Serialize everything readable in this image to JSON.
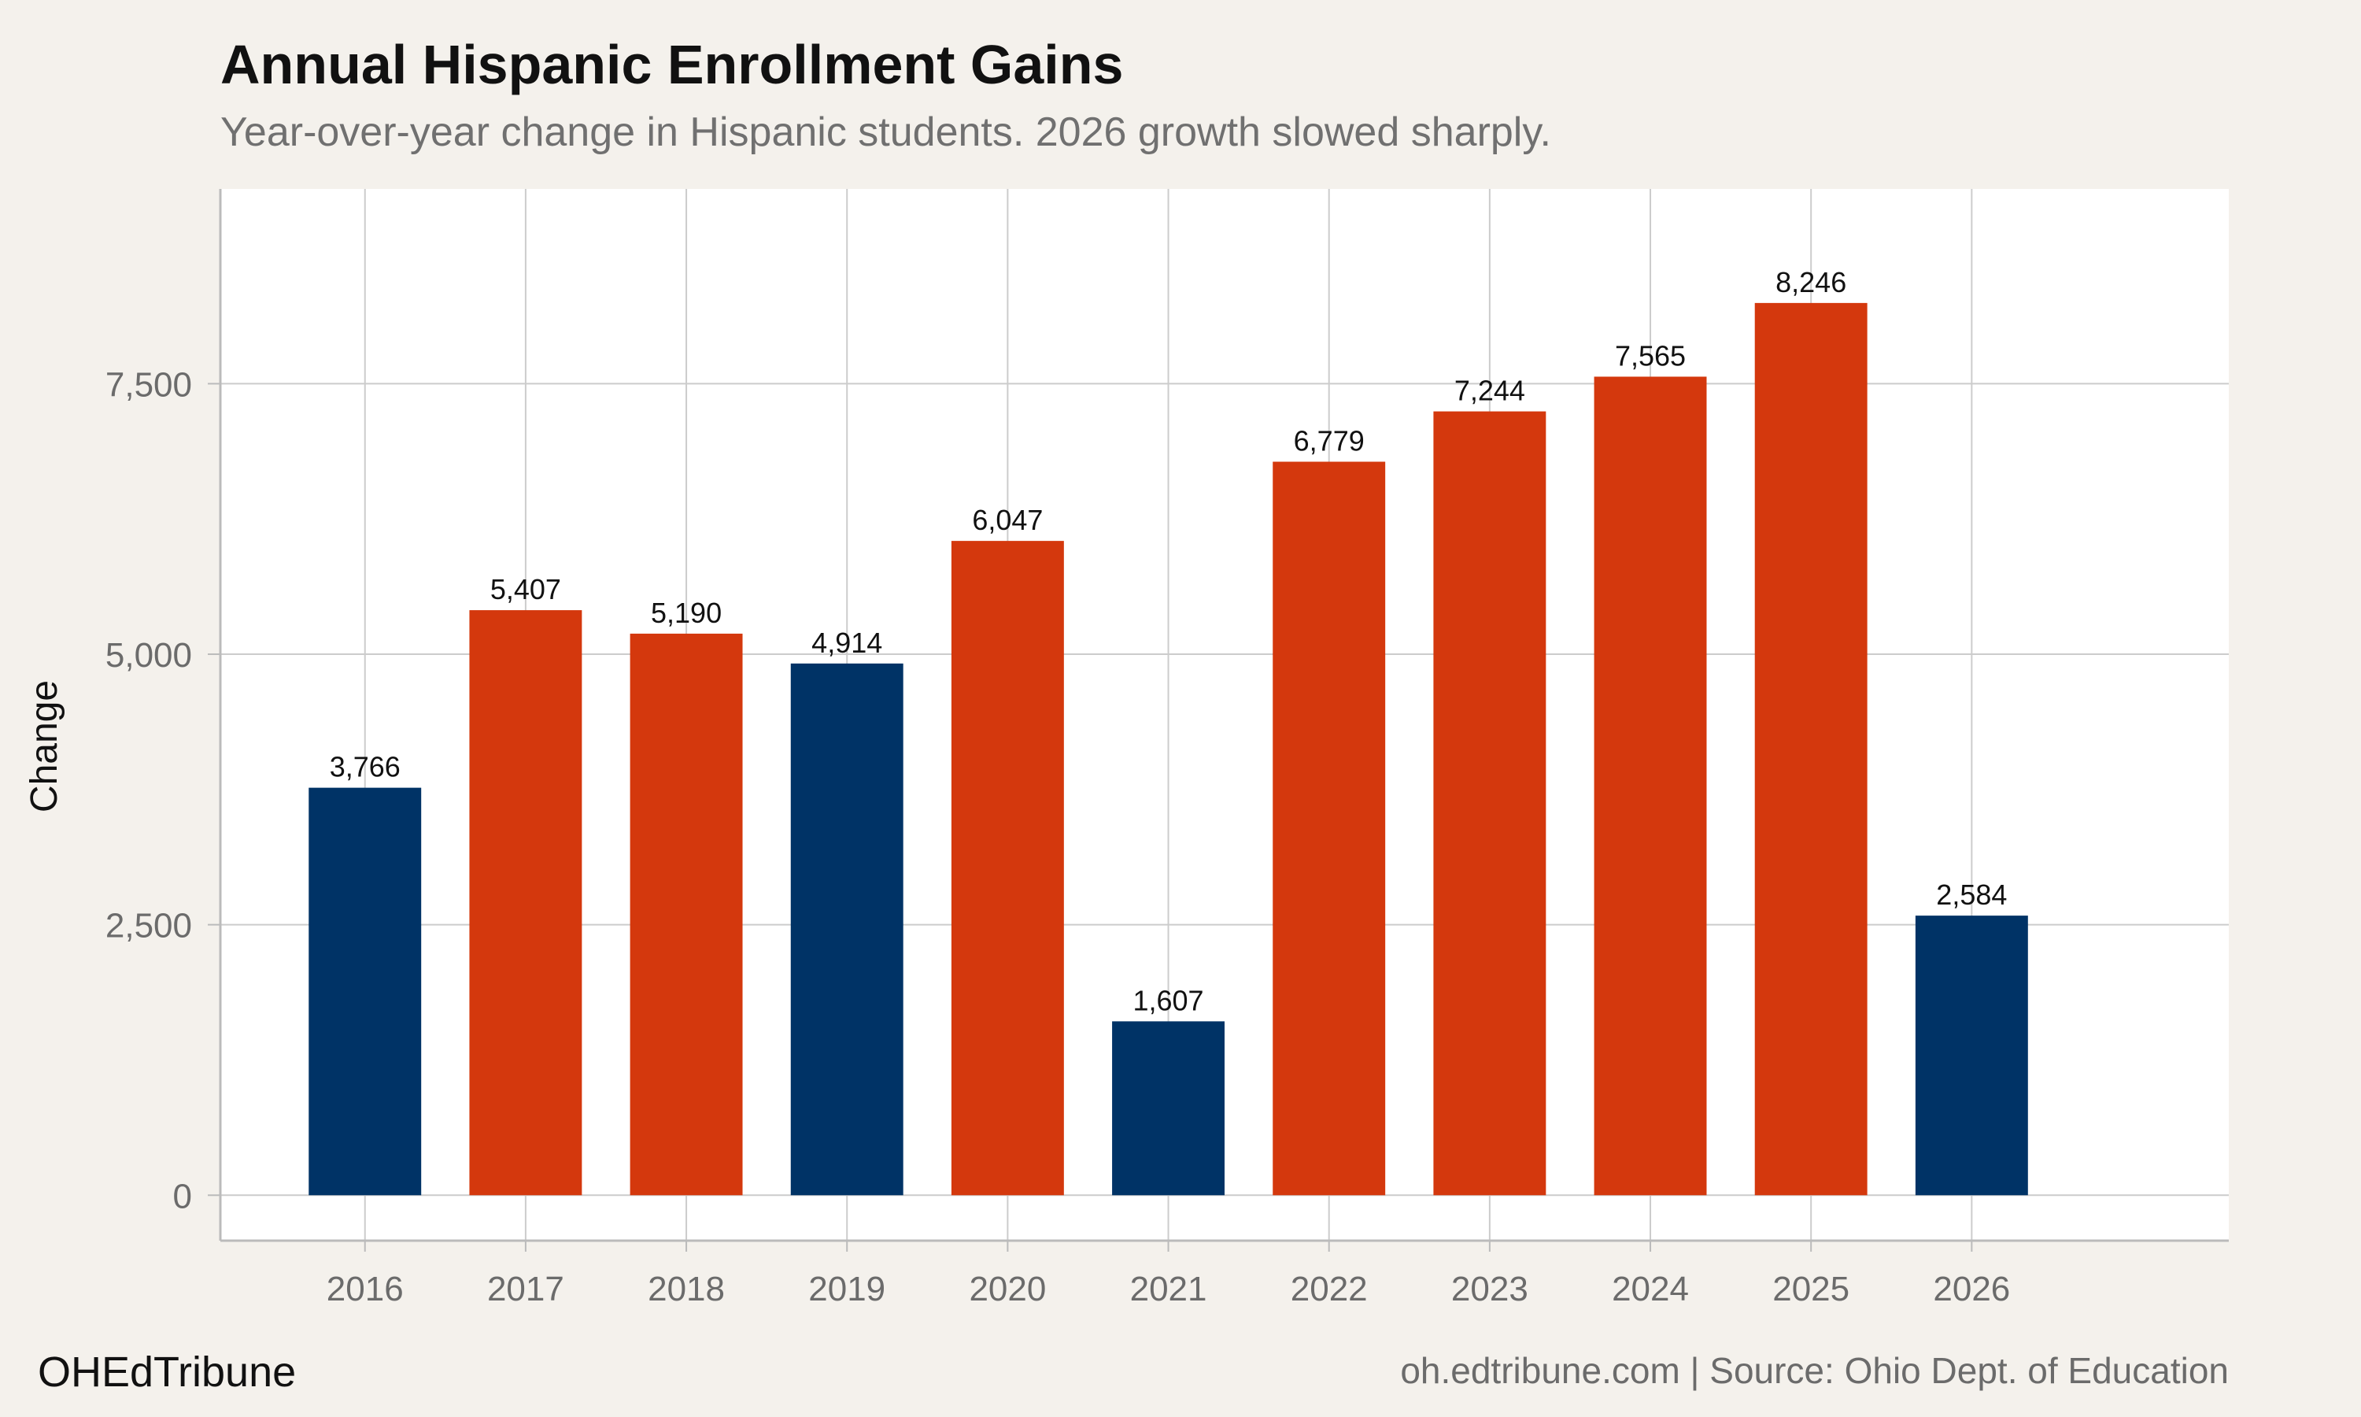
{
  "chart_data": {
    "type": "bar",
    "title": "Annual Hispanic Enrollment Gains",
    "subtitle": "Year-over-year change in Hispanic students. 2026 growth slowed sharply.",
    "xlabel": "",
    "ylabel": "Change",
    "categories": [
      "2016",
      "2017",
      "2018",
      "2019",
      "2020",
      "2021",
      "2022",
      "2023",
      "2024",
      "2025",
      "2026"
    ],
    "values": [
      3766,
      5407,
      5190,
      4914,
      6047,
      1607,
      6779,
      7244,
      7565,
      8246,
      2584
    ],
    "value_labels": [
      "3,766",
      "5,407",
      "5,190",
      "4,914",
      "6,047",
      "1,607",
      "6,779",
      "7,244",
      "7,565",
      "8,246",
      "2,584"
    ],
    "bar_colors": [
      "#003366",
      "#d4380d",
      "#d4380d",
      "#003366",
      "#d4380d",
      "#003366",
      "#d4380d",
      "#d4380d",
      "#d4380d",
      "#d4380d",
      "#003366"
    ],
    "yticks": [
      0,
      2500,
      5000,
      7500
    ],
    "ytick_labels": [
      "0",
      "2,500",
      "5,000",
      "7,500"
    ],
    "ylim": [
      -420,
      9300
    ],
    "xlim": [
      2015.1,
      2027.6
    ],
    "grid": true,
    "legend": "none"
  },
  "footer": {
    "brand": "OHEdTribune",
    "source": "oh.edtribune.com | Source: Ohio Dept. of Education"
  },
  "colors": {
    "background": "#f4f1ec",
    "panel": "#ffffff",
    "grid": "#cccccc",
    "above_trend": "#d4380d",
    "below_trend": "#003366"
  }
}
